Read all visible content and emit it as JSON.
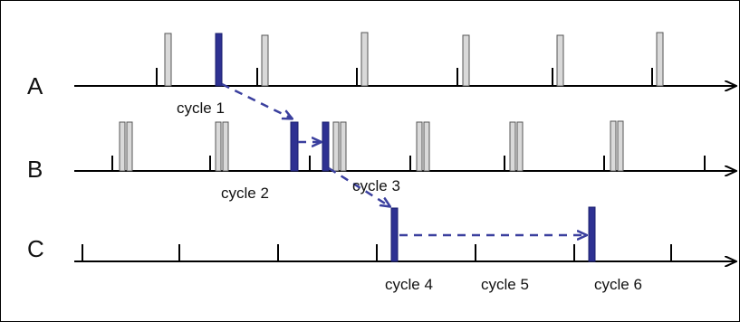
{
  "rows": [
    {
      "id": "A",
      "label": "A"
    },
    {
      "id": "B",
      "label": "B"
    },
    {
      "id": "C",
      "label": "C"
    }
  ],
  "cycles": [
    {
      "id": "cycle1",
      "label": "cycle 1"
    },
    {
      "id": "cycle2",
      "label": "cycle 2"
    },
    {
      "id": "cycle3",
      "label": "cycle 3"
    },
    {
      "id": "cycle4",
      "label": "cycle 4"
    },
    {
      "id": "cycle5",
      "label": "cycle 5"
    },
    {
      "id": "cycle6",
      "label": "cycle 6"
    }
  ],
  "colors": {
    "axis": "#000000",
    "pulse_fill": "#d9d9d9",
    "pulse_stroke": "#555555",
    "highlight": "#2e3192",
    "arrow": "#3a3f9e"
  }
}
